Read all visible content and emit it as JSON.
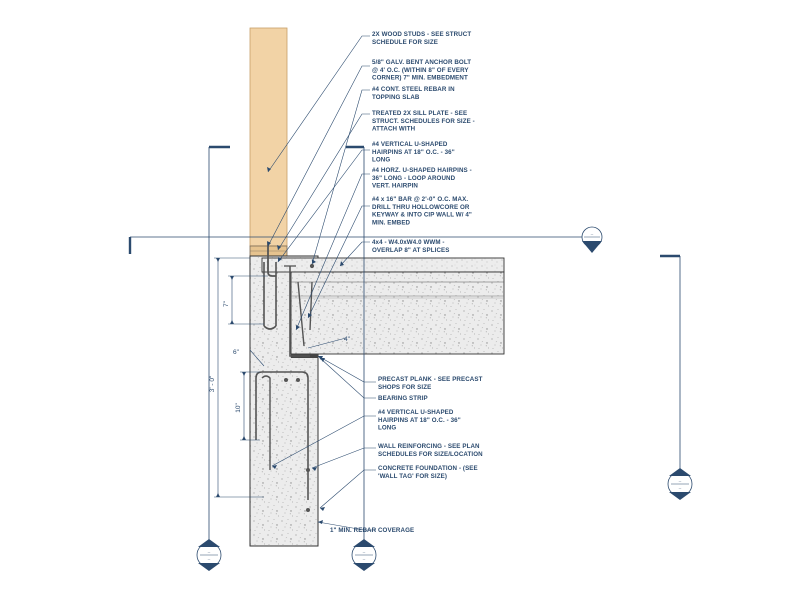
{
  "notes": [
    {
      "lines": [
        "2X WOOD STUDS - SEE STRUCT",
        "SCHEDULE FOR SIZE"
      ]
    },
    {
      "lines": [
        "5/8\" GALV. BENT ANCHOR BOLT",
        "@ 4' O.C. (WITHIN 8\" OF EVERY",
        "CORNER) 7\" MIN. EMBEDMENT"
      ]
    },
    {
      "lines": [
        "#4 CONT. STEEL REBAR IN",
        "TOPPING SLAB"
      ]
    },
    {
      "lines": [
        "TREATED 2X SILL PLATE - SEE",
        "STRUCT. SCHEDULES FOR SIZE -",
        "ATTACH WITH"
      ]
    },
    {
      "lines": [
        "#4 VERTICAL U-SHAPED",
        "HAIRPINS AT 18\" O.C. - 36\"",
        "LONG"
      ]
    },
    {
      "lines": [
        "#4 HORZ. U-SHAPED HAIRPINS -",
        "36\" LONG - LOOP AROUND",
        "VERT. HAIRPIN"
      ]
    },
    {
      "lines": [
        "#4 x 16\" BAR @ 2'-0\" O.C. MAX.",
        "DRILL THRU HOLLOWCORE OR",
        "KEYWAY & INTO CIP WALL W/ 4\"",
        "MIN. EMBED"
      ]
    },
    {
      "lines": [
        "4x4 - W4.0xW4.0 WWM -",
        "OVERLAP 8\" AT SPLICES"
      ]
    },
    {
      "lines": [
        "PRECAST PLANK - SEE PRECAST",
        "SHOPS FOR SIZE"
      ]
    },
    {
      "lines": [
        "BEARING STRIP"
      ]
    },
    {
      "lines": [
        "#4 VERTICAL U-SHAPED",
        "HAIRPINS AT 18\" O.C. - 36\"",
        "LONG"
      ]
    },
    {
      "lines": [
        "WALL REINFORCING - SEE PLAN",
        "SCHEDULES FOR SIZE/LOCATION"
      ]
    },
    {
      "lines": [
        "CONCRETE FOUNDATION - (SEE",
        "'WALL TAG' FOR SIZE)"
      ]
    },
    {
      "lines": [
        "1\" MIN. REBAR COVERAGE"
      ]
    }
  ],
  "dimensions": {
    "d7": "7\"",
    "d6": "6\"",
    "d3ft": "3' - 0\"",
    "d10": "10\"",
    "d4": "4\""
  },
  "tags": [
    {
      "top": "--",
      "bottom": "--"
    },
    {
      "top": "--",
      "bottom": "--"
    },
    {
      "top": "--",
      "bottom": "--"
    },
    {
      "top": "--",
      "bottom": "--"
    },
    {
      "top": "--",
      "bottom": "--"
    }
  ],
  "colors": {
    "line": "#2b4a6e",
    "wood": "#f2d3a6",
    "concrete": "#e9e9e9",
    "concrete_dark": "#d2d2d2",
    "rebar": "#6a6a6a"
  }
}
